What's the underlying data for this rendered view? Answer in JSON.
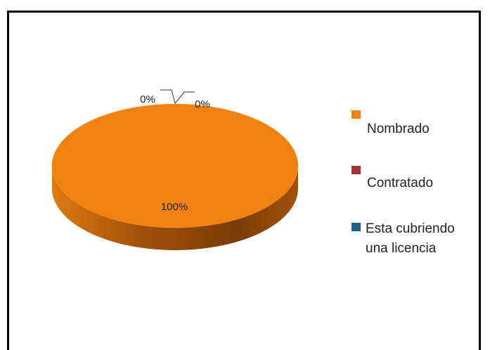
{
  "chart_data": {
    "type": "pie",
    "categories": [
      "Nombrado",
      "Contratado",
      "Esta cubriendo una licencia"
    ],
    "values": [
      100,
      0,
      0
    ],
    "value_labels": [
      "100%",
      "0%",
      "0%"
    ],
    "colors": [
      "#f0820f",
      "#a5303a",
      "#1f5f8b"
    ],
    "legend": "right"
  }
}
